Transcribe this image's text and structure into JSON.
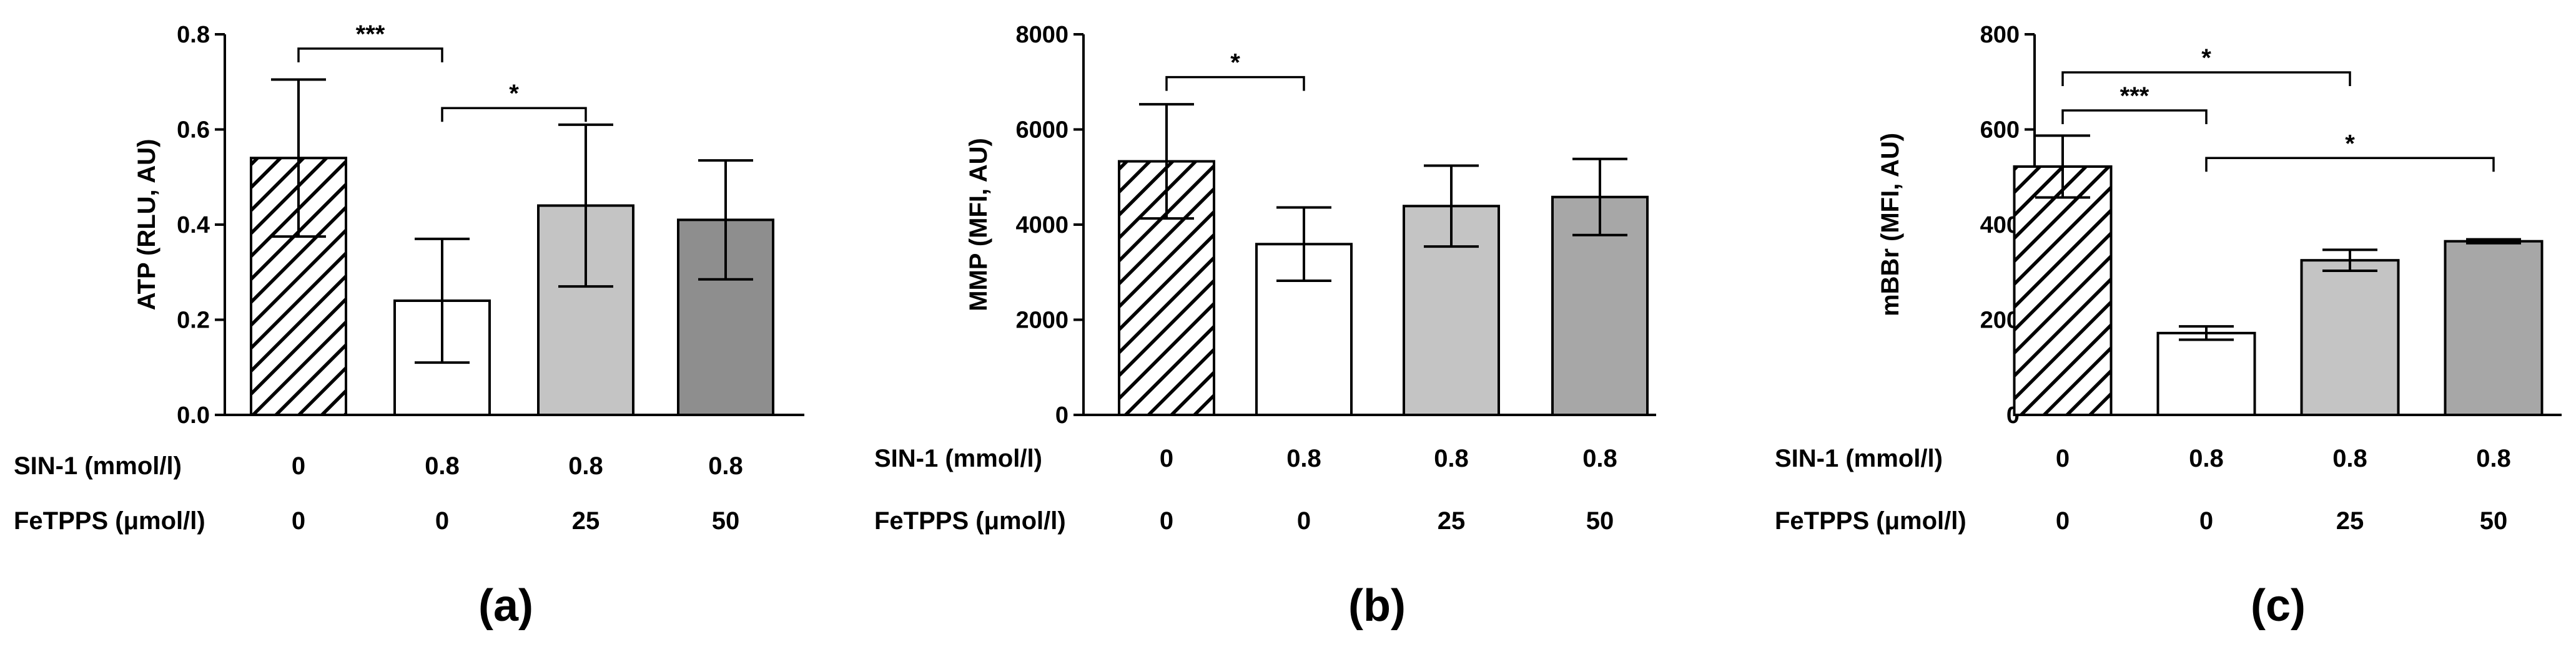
{
  "chart_data": [
    {
      "type": "bar",
      "panel_label": "(a)",
      "ylabel": "ATP (RLU, AU)",
      "ylim": [
        0,
        0.8
      ],
      "yticks": [
        "0.0",
        "0.2",
        "0.4",
        "0.6",
        "0.8"
      ],
      "ytick_values": [
        0,
        0.2,
        0.4,
        0.6,
        0.8
      ],
      "values": [
        0.54,
        0.24,
        0.44,
        0.41
      ],
      "errors": [
        0.165,
        0.13,
        0.17,
        0.125
      ],
      "bar_styles": [
        "hatched",
        "white",
        "light-gray",
        "dark-gray"
      ],
      "significance": [
        {
          "from": 0,
          "to": 1,
          "label": "***",
          "level": 0.77
        },
        {
          "from": 1,
          "to": 2,
          "label": "*",
          "level": 0.645
        }
      ],
      "conditions": [
        {
          "label": "SIN-1 (mmol/l)",
          "values": [
            "0",
            "0.8",
            "0.8",
            "0.8"
          ]
        },
        {
          "label": "FeTPPS (μmol/l)",
          "values": [
            "0",
            "0",
            "25",
            "50"
          ]
        }
      ]
    },
    {
      "type": "bar",
      "panel_label": "(b)",
      "ylabel": "MMP (MFI, AU)",
      "ylim": [
        0,
        8000
      ],
      "yticks": [
        "0",
        "2000",
        "4000",
        "6000",
        "8000"
      ],
      "ytick_values": [
        0,
        2000,
        4000,
        6000,
        8000
      ],
      "values": [
        5330,
        3590,
        4390,
        4580
      ],
      "errors": [
        1200,
        770,
        850,
        800
      ],
      "bar_styles": [
        "hatched",
        "white",
        "light-gray",
        "gray"
      ],
      "significance": [
        {
          "from": 0,
          "to": 1,
          "label": "*",
          "level": 7100
        }
      ],
      "conditions": [
        {
          "label": "SIN-1 (mmol/l)",
          "values": [
            "0",
            "0.8",
            "0.8",
            "0.8"
          ]
        },
        {
          "label": "FeTPPS (μmol/l)",
          "values": [
            "0",
            "0",
            "25",
            "50"
          ]
        }
      ]
    },
    {
      "type": "bar",
      "panel_label": "(c)",
      "ylabel": "mBBr (MFI, AU)",
      "ylim": [
        0,
        800
      ],
      "yticks": [
        "0",
        "200",
        "400",
        "600",
        "800"
      ],
      "ytick_values": [
        0,
        200,
        400,
        600,
        800
      ],
      "values": [
        522,
        172,
        325,
        365
      ],
      "errors": [
        65,
        14,
        22,
        4
      ],
      "bar_styles": [
        "hatched",
        "white",
        "light-gray",
        "gray"
      ],
      "significance": [
        {
          "from": 0,
          "to": 2,
          "label": "*",
          "level": 720
        },
        {
          "from": 0,
          "to": 1,
          "label": "***",
          "level": 640
        },
        {
          "from": 1,
          "to": 3,
          "label": "*",
          "level": 540
        }
      ],
      "conditions": [
        {
          "label": "SIN-1 (mmol/l)",
          "values": [
            "0",
            "0.8",
            "0.8",
            "0.8"
          ]
        },
        {
          "label": "FeTPPS (μmol/l)",
          "values": [
            "0",
            "0",
            "25",
            "50"
          ]
        }
      ]
    }
  ],
  "colors": {
    "white": "#ffffff",
    "light-gray": "#c4c4c4",
    "dark-gray": "#8e8e8e",
    "gray": "#a7a7a7",
    "hatch": "#000000"
  }
}
